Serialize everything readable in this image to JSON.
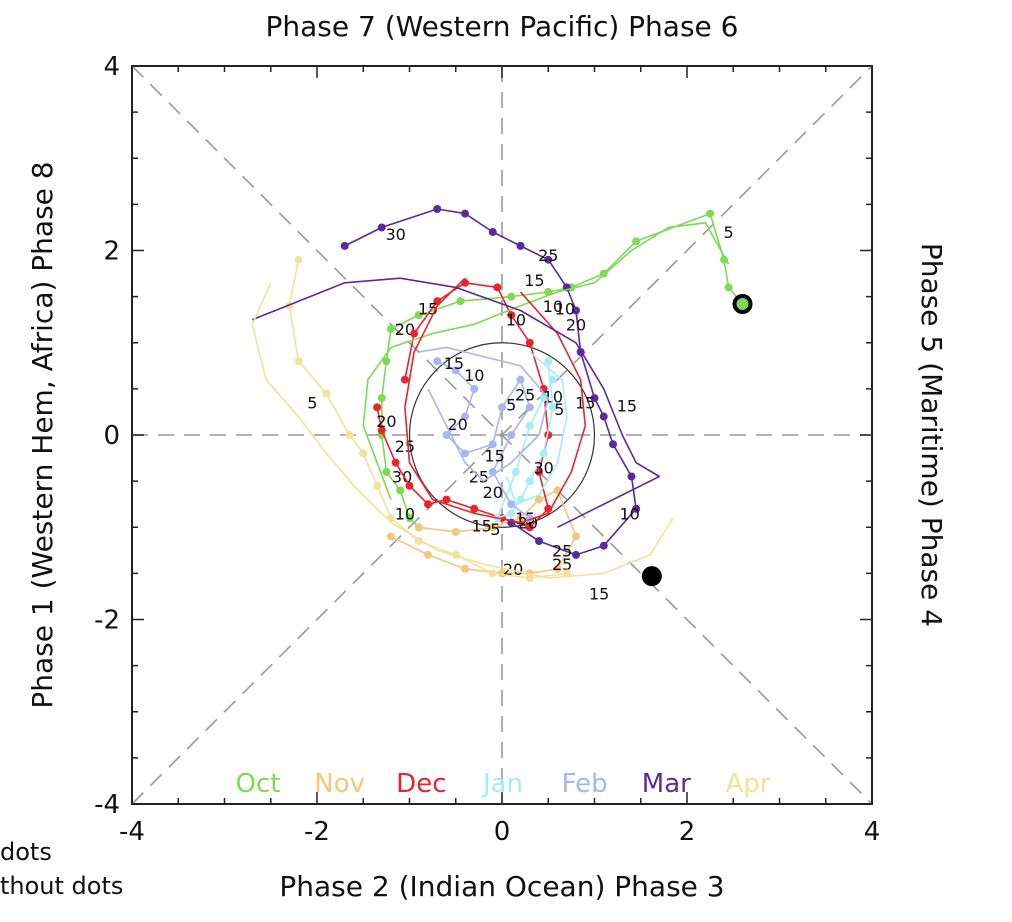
{
  "notes": {
    "line1": "dots",
    "line2": "thout dots"
  },
  "chart_data": {
    "type": "line",
    "title": "Phase 7 (Western Pacific) Phase 6",
    "xlabel": "Phase 2 (Indian Ocean) Phase 3",
    "ylabel": "Phase 1 (Western Hem, Africa) Phase 8",
    "ylabel_right": "Phase 5 (Maritime) Phase 4",
    "xlim": [
      -4,
      4
    ],
    "ylim": [
      -4,
      4
    ],
    "x_ticks": [
      "-4",
      "-2",
      "0",
      "2",
      "4"
    ],
    "y_ticks": [
      "-4",
      "-2",
      "0",
      "2",
      "4"
    ],
    "legend_placement": "bottom",
    "unit_circle_radius": 1,
    "colors": {
      "Oct": "#7ed957",
      "Nov": "#f5c77e",
      "Dec": "#e8242d",
      "Jan": "#a6ecf5",
      "Feb": "#aab4f0",
      "Mar": "#5b2b9e",
      "Apr": "#f2e29a"
    },
    "series": [
      {
        "name": "Oct",
        "dots": true,
        "points": [
          [
            2.6,
            1.42
          ],
          [
            2.45,
            1.6
          ],
          [
            2.4,
            1.9
          ],
          [
            2.25,
            2.4
          ],
          [
            1.45,
            2.1
          ],
          [
            1.1,
            1.75
          ],
          [
            0.75,
            1.6
          ],
          [
            0.5,
            1.55
          ],
          [
            0.1,
            1.5
          ],
          [
            -0.45,
            1.45
          ],
          [
            -0.9,
            1.3
          ],
          [
            -1.2,
            1.15
          ],
          [
            -1.25,
            0.8
          ],
          [
            -1.3,
            0.4
          ],
          [
            -1.3,
            0
          ],
          [
            -1.25,
            -0.4
          ],
          [
            -1.1,
            -0.6
          ],
          [
            -1.0,
            -0.9
          ],
          [
            -0.9,
            -1.0
          ]
        ],
        "labels": [
          {
            "text": "5",
            "x": 2.45,
            "y": 2.2
          },
          {
            "text": "10",
            "x": 0.55,
            "y": 1.4
          },
          {
            "text": "20",
            "x": -1.05,
            "y": 1.15
          },
          {
            "text": "30",
            "x": -1.08,
            "y": -0.45
          },
          {
            "text": "10",
            "x": -1.05,
            "y": -0.85
          }
        ]
      },
      {
        "name": "Nov",
        "dots": true,
        "points": [
          [
            -0.9,
            -1.0
          ],
          [
            -0.5,
            -1.05
          ],
          [
            -0.1,
            -1.0
          ],
          [
            0.2,
            -0.9
          ],
          [
            0.4,
            -0.7
          ],
          [
            0.6,
            -0.6
          ],
          [
            0.8,
            -1.1
          ],
          [
            0.6,
            -1.45
          ],
          [
            0.3,
            -1.5
          ],
          [
            0.0,
            -1.5
          ],
          [
            -0.4,
            -1.45
          ],
          [
            -0.8,
            -1.3
          ],
          [
            -1.2,
            -1.1
          ]
        ],
        "labels": [
          {
            "text": "15",
            "x": -0.22,
            "y": -0.98
          },
          {
            "text": "5",
            "x": -0.07,
            "y": -1.02
          },
          {
            "text": "20",
            "x": 0.12,
            "y": -1.45
          },
          {
            "text": "25",
            "x": 0.65,
            "y": -1.4
          },
          {
            "text": "15",
            "x": 1.05,
            "y": -1.72
          }
        ]
      },
      {
        "name": "Dec",
        "dots": true,
        "points": [
          [
            -1.35,
            0.3
          ],
          [
            -1.3,
            0.05
          ],
          [
            -1.15,
            -0.3
          ],
          [
            -1.0,
            -0.55
          ],
          [
            -0.8,
            -0.75
          ],
          [
            -0.6,
            -0.7
          ],
          [
            -0.3,
            -0.8
          ],
          [
            0.0,
            -0.9
          ],
          [
            0.3,
            -1.0
          ],
          [
            0.5,
            -0.8
          ],
          [
            0.4,
            -0.4
          ],
          [
            0.5,
            0
          ],
          [
            0.45,
            0.5
          ],
          [
            0.3,
            1.0
          ],
          [
            0.1,
            1.3
          ],
          [
            -0.05,
            1.6
          ],
          [
            -0.4,
            1.65
          ],
          [
            -0.7,
            1.45
          ],
          [
            -0.95,
            1.1
          ],
          [
            -1.05,
            0.6
          ]
        ],
        "labels": [
          {
            "text": "15",
            "x": -0.8,
            "y": 1.37
          },
          {
            "text": "20",
            "x": -1.25,
            "y": 0.15
          },
          {
            "text": "25",
            "x": -1.05,
            "y": -0.12
          },
          {
            "text": "10",
            "x": 0.15,
            "y": 1.25
          },
          {
            "text": "15",
            "x": 0.35,
            "y": 1.68
          }
        ]
      },
      {
        "name": "Jan",
        "dots": true,
        "points": [
          [
            0.5,
            0.8
          ],
          [
            0.55,
            0.3
          ],
          [
            0.45,
            -0.2
          ],
          [
            0.3,
            -0.5
          ],
          [
            0.2,
            -0.7
          ],
          [
            0.1,
            -0.85
          ],
          [
            -0.05,
            -0.9
          ],
          [
            0.15,
            -0.4
          ],
          [
            0.3,
            0.1
          ],
          [
            0.45,
            0.4
          ],
          [
            0.55,
            0.6
          ]
        ],
        "labels": [
          {
            "text": "10",
            "x": 0.55,
            "y": 0.42
          },
          {
            "text": "5",
            "x": 0.62,
            "y": 0.28
          },
          {
            "text": "30",
            "x": 0.45,
            "y": -0.35
          },
          {
            "text": "15",
            "x": 0.25,
            "y": -0.9
          },
          {
            "text": "20",
            "x": 0.28,
            "y": -0.95
          }
        ]
      },
      {
        "name": "Feb",
        "dots": true,
        "points": [
          [
            -0.7,
            0.8
          ],
          [
            -0.5,
            0.7
          ],
          [
            -0.3,
            0.5
          ],
          [
            -0.4,
            0.2
          ],
          [
            -0.6,
            0
          ],
          [
            -0.4,
            -0.2
          ],
          [
            -0.1,
            -0.1
          ],
          [
            0.0,
            0.3
          ],
          [
            0.2,
            0.6
          ],
          [
            0.3,
            0.3
          ],
          [
            0.1,
            0
          ],
          [
            -0.1,
            -0.4
          ],
          [
            0.1,
            -0.75
          ],
          [
            0.3,
            -0.9
          ]
        ],
        "labels": [
          {
            "text": "15",
            "x": -0.52,
            "y": 0.78
          },
          {
            "text": "10",
            "x": -0.3,
            "y": 0.65
          },
          {
            "text": "20",
            "x": -0.48,
            "y": 0.12
          },
          {
            "text": "25",
            "x": 0.25,
            "y": 0.44
          },
          {
            "text": "5",
            "x": 0.1,
            "y": 0.33
          },
          {
            "text": "25",
            "x": -0.25,
            "y": -0.45
          },
          {
            "text": "20",
            "x": -0.1,
            "y": -0.62
          },
          {
            "text": "15",
            "x": -0.08,
            "y": -0.22
          }
        ]
      },
      {
        "name": "Mar",
        "dots": true,
        "points": [
          [
            -1.7,
            2.05
          ],
          [
            -1.3,
            2.25
          ],
          [
            -0.7,
            2.45
          ],
          [
            -0.4,
            2.4
          ],
          [
            -0.1,
            2.2
          ],
          [
            0.2,
            2.05
          ],
          [
            0.5,
            1.9
          ],
          [
            0.7,
            1.6
          ],
          [
            0.8,
            1.35
          ],
          [
            0.85,
            0.9
          ],
          [
            1.0,
            0.4
          ],
          [
            1.1,
            0.2
          ],
          [
            1.2,
            -0.1
          ],
          [
            1.4,
            -0.45
          ],
          [
            1.45,
            -0.8
          ],
          [
            1.1,
            -1.2
          ],
          [
            0.8,
            -1.3
          ],
          [
            0.4,
            -1.15
          ],
          [
            0.1,
            -0.95
          ]
        ],
        "labels": [
          {
            "text": "30",
            "x": -1.15,
            "y": 2.18
          },
          {
            "text": "25",
            "x": 0.5,
            "y": 1.95
          },
          {
            "text": "10",
            "x": 0.68,
            "y": 1.37
          },
          {
            "text": "20",
            "x": 0.8,
            "y": 1.2
          },
          {
            "text": "15",
            "x": 0.9,
            "y": 0.35
          },
          {
            "text": "15",
            "x": 1.35,
            "y": 0.32
          },
          {
            "text": "10",
            "x": 1.38,
            "y": -0.85
          },
          {
            "text": "25",
            "x": 0.65,
            "y": -1.25
          }
        ]
      },
      {
        "name": "Apr",
        "dots": true,
        "points": [
          [
            -2.2,
            1.9
          ],
          [
            -2.3,
            1.4
          ],
          [
            -2.2,
            0.8
          ],
          [
            -1.9,
            0.45
          ],
          [
            -1.65,
            0
          ],
          [
            -1.5,
            -0.2
          ],
          [
            -1.35,
            -0.55
          ],
          [
            -1.2,
            -0.9
          ],
          [
            -0.9,
            -1.15
          ],
          [
            -0.5,
            -1.3
          ],
          [
            -0.1,
            -1.5
          ],
          [
            0.3,
            -1.55
          ],
          [
            0.7,
            -1.5
          ]
        ],
        "labels": [
          {
            "text": "5",
            "x": -2.05,
            "y": 0.35
          }
        ]
      },
      {
        "name": "",
        "dots": false,
        "color": "#7ed957",
        "points": [
          [
            2.45,
            1.85
          ],
          [
            2.2,
            2.3
          ],
          [
            1.8,
            2.25
          ],
          [
            1.4,
            2.0
          ],
          [
            1.0,
            1.65
          ],
          [
            0.6,
            1.55
          ],
          [
            0.2,
            1.4
          ],
          [
            -0.3,
            1.2
          ],
          [
            -0.75,
            1.1
          ],
          [
            -1.2,
            0.95
          ],
          [
            -1.45,
            0.6
          ],
          [
            -1.5,
            0.1
          ],
          [
            -1.35,
            -0.3
          ],
          [
            -1.2,
            -0.7
          ]
        ]
      },
      {
        "name": "",
        "dots": false,
        "color": "#e8242d",
        "points": [
          [
            -0.4,
            1.7
          ],
          [
            -0.7,
            1.4
          ],
          [
            -0.95,
            0.9
          ],
          [
            -1.05,
            0.3
          ],
          [
            -1.0,
            -0.3
          ],
          [
            -0.75,
            -0.7
          ],
          [
            -0.3,
            -0.85
          ],
          [
            0.2,
            -0.95
          ],
          [
            0.5,
            -0.85
          ],
          [
            0.75,
            -0.4
          ],
          [
            0.9,
            0.1
          ],
          [
            0.85,
            0.6
          ],
          [
            0.6,
            1.1
          ],
          [
            0.2,
            1.55
          ]
        ]
      },
      {
        "name": "",
        "dots": false,
        "color": "#5b2b9e",
        "points": [
          [
            -2.7,
            1.25
          ],
          [
            -2.2,
            1.45
          ],
          [
            -1.7,
            1.65
          ],
          [
            -1.1,
            1.7
          ],
          [
            -0.5,
            1.6
          ],
          [
            0.2,
            1.35
          ],
          [
            0.8,
            1.0
          ],
          [
            1.1,
            0.5
          ],
          [
            1.3,
            0.0
          ],
          [
            1.45,
            -0.3
          ],
          [
            1.7,
            -0.45
          ],
          [
            1.4,
            -0.6
          ],
          [
            1.0,
            -0.8
          ],
          [
            0.6,
            -1.0
          ]
        ]
      },
      {
        "name": "",
        "dots": false,
        "color": "#f2e29a",
        "points": [
          [
            -2.5,
            1.65
          ],
          [
            -2.7,
            1.2
          ],
          [
            -2.55,
            0.6
          ],
          [
            -2.2,
            0.2
          ],
          [
            -1.9,
            -0.2
          ],
          [
            -1.6,
            -0.55
          ],
          [
            -1.2,
            -0.95
          ],
          [
            -0.7,
            -1.25
          ],
          [
            -0.2,
            -1.4
          ],
          [
            0.5,
            -1.55
          ],
          [
            1.1,
            -1.5
          ],
          [
            1.6,
            -1.3
          ],
          [
            1.85,
            -0.9
          ]
        ]
      },
      {
        "name": "",
        "dots": false,
        "color": "#aab4f0",
        "points": [
          [
            -0.9,
            0.9
          ],
          [
            -0.6,
            0.95
          ],
          [
            -0.2,
            0.85
          ],
          [
            0.2,
            0.75
          ],
          [
            0.5,
            0.4
          ],
          [
            0.4,
            0.0
          ],
          [
            0.1,
            -0.3
          ],
          [
            -0.2,
            -0.5
          ],
          [
            -0.4,
            -0.3
          ],
          [
            -0.6,
            0.1
          ],
          [
            -0.8,
            0.5
          ]
        ]
      },
      {
        "name": "",
        "dots": false,
        "color": "#a6ecf5",
        "points": [
          [
            0.3,
            0.9
          ],
          [
            0.65,
            0.6
          ],
          [
            0.7,
            0.2
          ],
          [
            0.6,
            -0.3
          ],
          [
            0.4,
            -0.65
          ],
          [
            0.15,
            -0.75
          ],
          [
            0.05,
            -0.45
          ]
        ]
      }
    ],
    "markers": [
      {
        "x": 2.6,
        "y": 1.42,
        "style": "ring"
      },
      {
        "x": 1.62,
        "y": -1.53,
        "style": "filled"
      }
    ]
  }
}
